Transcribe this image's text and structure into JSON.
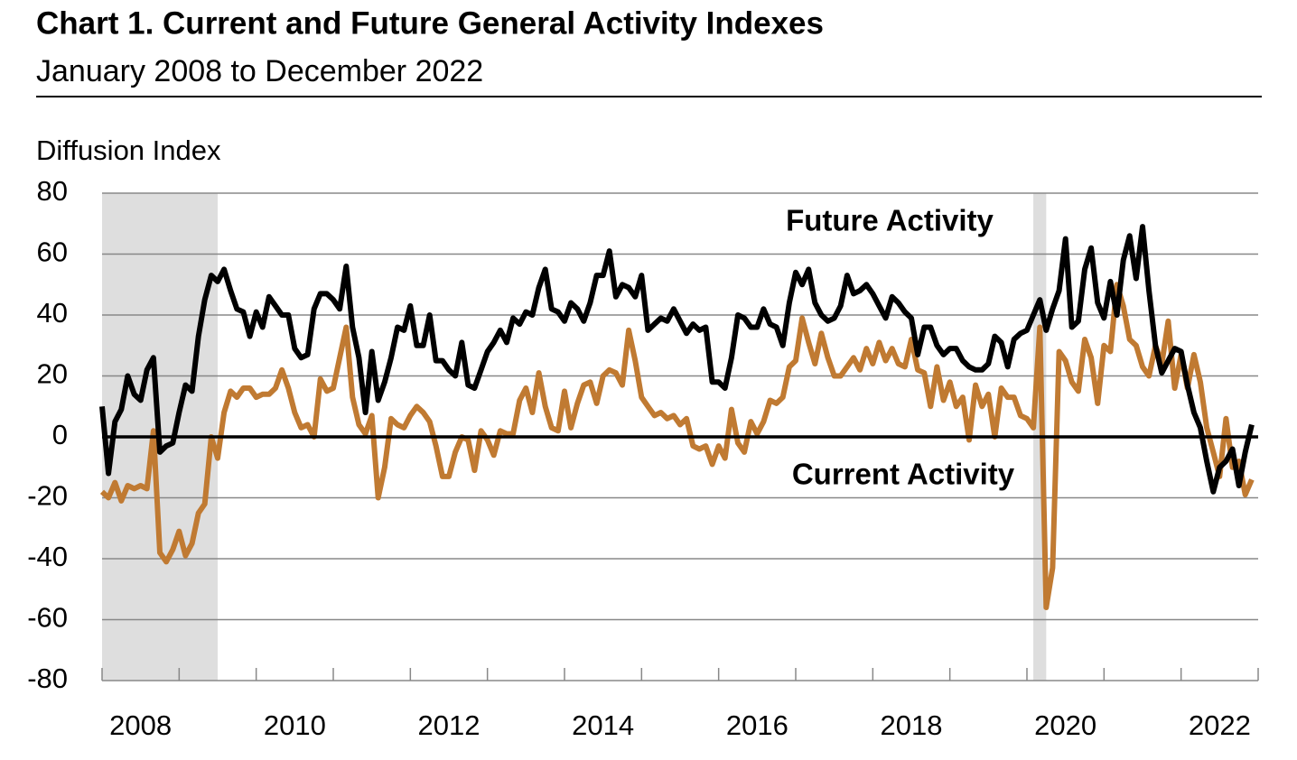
{
  "chart_data": {
    "type": "line",
    "title": "Chart 1. Current and Future General Activity Indexes",
    "subtitle": "January 2008 to December 2022",
    "y_axis_label": "Diffusion Index",
    "x": [
      2008,
      2008.083,
      2008.167,
      2008.25,
      2008.333,
      2008.417,
      2008.5,
      2008.583,
      2008.667,
      2008.75,
      2008.833,
      2008.917,
      2009,
      2009.083,
      2009.167,
      2009.25,
      2009.333,
      2009.417,
      2009.5,
      2009.583,
      2009.667,
      2009.75,
      2009.833,
      2009.917,
      2010,
      2010.083,
      2010.167,
      2010.25,
      2010.333,
      2010.417,
      2010.5,
      2010.583,
      2010.667,
      2010.75,
      2010.833,
      2010.917,
      2011,
      2011.083,
      2011.167,
      2011.25,
      2011.333,
      2011.417,
      2011.5,
      2011.583,
      2011.667,
      2011.75,
      2011.833,
      2011.917,
      2012,
      2012.083,
      2012.167,
      2012.25,
      2012.333,
      2012.417,
      2012.5,
      2012.583,
      2012.667,
      2012.75,
      2012.833,
      2012.917,
      2013,
      2013.083,
      2013.167,
      2013.25,
      2013.333,
      2013.417,
      2013.5,
      2013.583,
      2013.667,
      2013.75,
      2013.833,
      2013.917,
      2014,
      2014.083,
      2014.167,
      2014.25,
      2014.333,
      2014.417,
      2014.5,
      2014.583,
      2014.667,
      2014.75,
      2014.833,
      2014.917,
      2015,
      2015.083,
      2015.167,
      2015.25,
      2015.333,
      2015.417,
      2015.5,
      2015.583,
      2015.667,
      2015.75,
      2015.833,
      2015.917,
      2016,
      2016.083,
      2016.167,
      2016.25,
      2016.333,
      2016.417,
      2016.5,
      2016.583,
      2016.667,
      2016.75,
      2016.833,
      2016.917,
      2017,
      2017.083,
      2017.167,
      2017.25,
      2017.333,
      2017.417,
      2017.5,
      2017.583,
      2017.667,
      2017.75,
      2017.833,
      2017.917,
      2018,
      2018.083,
      2018.167,
      2018.25,
      2018.333,
      2018.417,
      2018.5,
      2018.583,
      2018.667,
      2018.75,
      2018.833,
      2018.917,
      2019,
      2019.083,
      2019.167,
      2019.25,
      2019.333,
      2019.417,
      2019.5,
      2019.583,
      2019.667,
      2019.75,
      2019.833,
      2019.917,
      2020,
      2020.083,
      2020.167,
      2020.25,
      2020.333,
      2020.417,
      2020.5,
      2020.583,
      2020.667,
      2020.75,
      2020.833,
      2020.917,
      2021,
      2021.083,
      2021.167,
      2021.25,
      2021.333,
      2021.417,
      2021.5,
      2021.583,
      2021.667,
      2021.75,
      2021.833,
      2021.917,
      2022,
      2022.083,
      2022.167,
      2022.25,
      2022.333,
      2022.417,
      2022.5,
      2022.583,
      2022.667,
      2022.75,
      2022.833,
      2022.917
    ],
    "series": [
      {
        "name": "Future Activity",
        "color": "#000000",
        "values": [
          10,
          -12,
          5,
          9,
          20,
          14,
          12,
          22,
          26,
          -5,
          -3,
          -2,
          8,
          17,
          15,
          33,
          45,
          53,
          51,
          55,
          48,
          42,
          41,
          33,
          41,
          36,
          46,
          43,
          40,
          40,
          29,
          26,
          27,
          42,
          47,
          47,
          45,
          42,
          56,
          36,
          26,
          8,
          28,
          12,
          18,
          26,
          36,
          35,
          43,
          30,
          30,
          40,
          25,
          25,
          22,
          20,
          31,
          17,
          16,
          22,
          28,
          31,
          35,
          31,
          39,
          37,
          41,
          40,
          49,
          55,
          42,
          41,
          38,
          44,
          42,
          38,
          44,
          53,
          53,
          61,
          46,
          50,
          49,
          46,
          53,
          35,
          37,
          39,
          38,
          42,
          38,
          34,
          37,
          35,
          36,
          18,
          18,
          16,
          26,
          40,
          39,
          36,
          36,
          42,
          37,
          36,
          30,
          44,
          54,
          50,
          55,
          44,
          40,
          38,
          39,
          43,
          53,
          47,
          48,
          50,
          47,
          43,
          39,
          46,
          44,
          41,
          39,
          27,
          36,
          36,
          30,
          27,
          29,
          29,
          25,
          23,
          22,
          22,
          24,
          33,
          31,
          23,
          32,
          34,
          35,
          40,
          45,
          35,
          42,
          48,
          65,
          36,
          38,
          55,
          62,
          44,
          39,
          51,
          40,
          58,
          66,
          52,
          69,
          48,
          30,
          21,
          25,
          29,
          28,
          17,
          8,
          3,
          -8,
          -18,
          -10,
          -8,
          -4,
          -16,
          -5,
          4
        ]
      },
      {
        "name": "Current Activity",
        "color": "#c07a32",
        "values": [
          -18,
          -20,
          -15,
          -21,
          -16,
          -17,
          -16,
          -17,
          2,
          -38,
          -41,
          -37,
          -31,
          -39,
          -35,
          -25,
          -22,
          0,
          -7,
          8,
          15,
          13,
          16,
          16,
          13,
          14,
          14,
          16,
          22,
          16,
          8,
          3,
          4,
          0,
          19,
          15,
          16,
          26,
          36,
          13,
          4,
          1,
          7,
          -20,
          -10,
          6,
          4,
          3,
          7,
          10,
          8,
          5,
          -3,
          -13,
          -13,
          -5,
          0,
          -1,
          -11,
          2,
          -1,
          -6,
          2,
          1,
          1,
          12,
          16,
          8,
          21,
          10,
          3,
          2,
          15,
          3,
          11,
          17,
          18,
          11,
          20,
          22,
          21,
          17,
          35,
          25,
          13,
          10,
          7,
          8,
          6,
          7,
          4,
          6,
          -3,
          -4,
          -3,
          -9,
          -3,
          -7,
          9,
          -2,
          -5,
          5,
          1,
          5,
          12,
          11,
          13,
          23,
          25,
          39,
          31,
          24,
          34,
          26,
          20,
          20,
          23,
          26,
          22,
          29,
          24,
          31,
          25,
          29,
          24,
          23,
          32,
          22,
          21,
          10,
          23,
          12,
          18,
          10,
          13,
          -1,
          17,
          10,
          14,
          0,
          16,
          13,
          13,
          7,
          6,
          3,
          36,
          -56,
          -43,
          28,
          25,
          18,
          15,
          32,
          26,
          11,
          30,
          28,
          50,
          43,
          32,
          30,
          23,
          20,
          30,
          24,
          38,
          16,
          27,
          16,
          27,
          18,
          3,
          -5,
          -13,
          6,
          -10,
          -8,
          -19,
          -14
        ]
      }
    ],
    "xlim": [
      2008,
      2023
    ],
    "xticks": [
      {
        "value": 2008.5,
        "label": "2008"
      },
      {
        "value": 2010.5,
        "label": "2010"
      },
      {
        "value": 2012.5,
        "label": "2012"
      },
      {
        "value": 2014.5,
        "label": "2014"
      },
      {
        "value": 2016.5,
        "label": "2016"
      },
      {
        "value": 2018.5,
        "label": "2018"
      },
      {
        "value": 2020.5,
        "label": "2020"
      },
      {
        "value": 2022.5,
        "label": "2022"
      }
    ],
    "xtick_marks": [
      2008,
      2009,
      2010,
      2011,
      2012,
      2013,
      2014,
      2015,
      2016,
      2017,
      2018,
      2019,
      2020,
      2021,
      2022,
      2023
    ],
    "ylim": [
      -80,
      80
    ],
    "yticks": [
      -80,
      -60,
      -40,
      -20,
      0,
      20,
      40,
      60,
      80
    ],
    "grid": true,
    "shaded_periods": [
      [
        2008,
        2009.5
      ],
      [
        2020.083,
        2020.25
      ]
    ],
    "shade_color": "#dedede"
  }
}
